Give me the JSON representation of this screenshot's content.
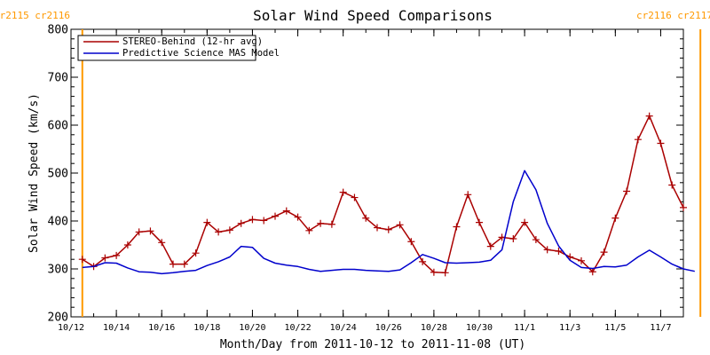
{
  "chart_data": {
    "type": "line",
    "title": "Solar Wind Speed Comparisons",
    "xlabel": "Month/Day from 2011-10-12 to 2011-11-08 (UT)",
    "ylabel": "Solar Wind Speed (km/s)",
    "xlim": [
      "2011-10-12",
      "2011-11-08"
    ],
    "ylim": [
      200,
      800
    ],
    "yticks": [
      200,
      300,
      400,
      500,
      600,
      700,
      800
    ],
    "xticks": [
      {
        "date": "2011-10-12",
        "label": "10/12"
      },
      {
        "date": "2011-10-14",
        "label": "10/14"
      },
      {
        "date": "2011-10-16",
        "label": "10/16"
      },
      {
        "date": "2011-10-18",
        "label": "10/18"
      },
      {
        "date": "2011-10-20",
        "label": "10/20"
      },
      {
        "date": "2011-10-22",
        "label": "10/22"
      },
      {
        "date": "2011-10-24",
        "label": "10/24"
      },
      {
        "date": "2011-10-26",
        "label": "10/26"
      },
      {
        "date": "2011-10-28",
        "label": "10/28"
      },
      {
        "date": "2011-10-30",
        "label": "10/30"
      },
      {
        "date": "2011-11-01",
        "label": "11/1"
      },
      {
        "date": "2011-11-03",
        "label": "11/3"
      },
      {
        "date": "2011-11-05",
        "label": "11/5"
      },
      {
        "date": "2011-11-07",
        "label": "11/7"
      }
    ],
    "legend_position": "top-left",
    "grid": false,
    "carrington_markers": [
      {
        "date": "2011-10-12 12:00",
        "left_label": "cr2115",
        "right_label": "cr2116",
        "label_side": "left",
        "color": "#FF9900"
      },
      {
        "date": "2011-11-08 18:00",
        "left_label": "cr2116",
        "right_label": "cr2117",
        "label_side": "right",
        "color": "#FF9900"
      }
    ],
    "series": [
      {
        "name": "STEREO-Behind (12-hr avg)",
        "color": "#AA0000",
        "marker": "plus",
        "points": [
          [
            "2011-10-12 12:00",
            320
          ],
          [
            "2011-10-13 00:00",
            305
          ],
          [
            "2011-10-13 12:00",
            323
          ],
          [
            "2011-10-14 00:00",
            328
          ],
          [
            "2011-10-14 12:00",
            350
          ],
          [
            "2011-10-15 00:00",
            377
          ],
          [
            "2011-10-15 12:00",
            379
          ],
          [
            "2011-10-16 00:00",
            355
          ],
          [
            "2011-10-16 12:00",
            310
          ],
          [
            "2011-10-17 00:00",
            310
          ],
          [
            "2011-10-17 12:00",
            333
          ],
          [
            "2011-10-18 00:00",
            397
          ],
          [
            "2011-10-18 12:00",
            377
          ],
          [
            "2011-10-19 00:00",
            381
          ],
          [
            "2011-10-19 12:00",
            395
          ],
          [
            "2011-10-20 00:00",
            403
          ],
          [
            "2011-10-20 12:00",
            401
          ],
          [
            "2011-10-21 00:00",
            410
          ],
          [
            "2011-10-21 12:00",
            421
          ],
          [
            "2011-10-22 00:00",
            408
          ],
          [
            "2011-10-22 12:00",
            380
          ],
          [
            "2011-10-23 00:00",
            395
          ],
          [
            "2011-10-23 12:00",
            393
          ],
          [
            "2011-10-24 00:00",
            460
          ],
          [
            "2011-10-24 12:00",
            449
          ],
          [
            "2011-10-25 00:00",
            406
          ],
          [
            "2011-10-25 12:00",
            386
          ],
          [
            "2011-10-26 00:00",
            382
          ],
          [
            "2011-10-26 12:00",
            392
          ],
          [
            "2011-10-27 00:00",
            357
          ],
          [
            "2011-10-27 12:00",
            315
          ],
          [
            "2011-10-28 00:00",
            293
          ],
          [
            "2011-10-28 12:00",
            292
          ],
          [
            "2011-10-29 00:00",
            388
          ],
          [
            "2011-10-29 12:00",
            455
          ],
          [
            "2011-10-30 00:00",
            397
          ],
          [
            "2011-10-30 12:00",
            347
          ],
          [
            "2011-10-31 00:00",
            366
          ],
          [
            "2011-10-31 12:00",
            363
          ],
          [
            "2011-11-01 00:00",
            397
          ],
          [
            "2011-11-01 12:00",
            361
          ],
          [
            "2011-11-02 00:00",
            340
          ],
          [
            "2011-11-02 12:00",
            337
          ],
          [
            "2011-11-03 00:00",
            325
          ],
          [
            "2011-11-03 12:00",
            317
          ],
          [
            "2011-11-04 00:00",
            294
          ],
          [
            "2011-11-04 12:00",
            335
          ],
          [
            "2011-11-05 00:00",
            406
          ],
          [
            "2011-11-05 12:00",
            462
          ],
          [
            "2011-11-06 00:00",
            570
          ],
          [
            "2011-11-06 12:00",
            619
          ],
          [
            "2011-11-07 00:00",
            562
          ],
          [
            "2011-11-07 12:00",
            475
          ],
          [
            "2011-11-08 00:00",
            428
          ]
        ]
      },
      {
        "name": "Predictive Science MAS Model",
        "color": "#0000CC",
        "marker": "none",
        "points": [
          [
            "2011-10-12 12:00",
            303
          ],
          [
            "2011-10-13 00:00",
            305
          ],
          [
            "2011-10-13 12:00",
            313
          ],
          [
            "2011-10-14 00:00",
            312
          ],
          [
            "2011-10-14 12:00",
            302
          ],
          [
            "2011-10-15 00:00",
            294
          ],
          [
            "2011-10-15 12:00",
            293
          ],
          [
            "2011-10-16 00:00",
            290
          ],
          [
            "2011-10-16 12:00",
            292
          ],
          [
            "2011-10-17 00:00",
            295
          ],
          [
            "2011-10-17 12:00",
            297
          ],
          [
            "2011-10-18 00:00",
            307
          ],
          [
            "2011-10-18 12:00",
            315
          ],
          [
            "2011-10-19 00:00",
            325
          ],
          [
            "2011-10-19 12:00",
            347
          ],
          [
            "2011-10-20 00:00",
            345
          ],
          [
            "2011-10-20 12:00",
            322
          ],
          [
            "2011-10-21 00:00",
            312
          ],
          [
            "2011-10-21 12:00",
            308
          ],
          [
            "2011-10-22 00:00",
            305
          ],
          [
            "2011-10-22 12:00",
            299
          ],
          [
            "2011-10-23 00:00",
            295
          ],
          [
            "2011-10-23 12:00",
            297
          ],
          [
            "2011-10-24 00:00",
            299
          ],
          [
            "2011-10-24 12:00",
            299
          ],
          [
            "2011-10-25 00:00",
            297
          ],
          [
            "2011-10-25 12:00",
            296
          ],
          [
            "2011-10-26 00:00",
            295
          ],
          [
            "2011-10-26 12:00",
            298
          ],
          [
            "2011-10-27 00:00",
            313
          ],
          [
            "2011-10-27 12:00",
            330
          ],
          [
            "2011-10-28 00:00",
            322
          ],
          [
            "2011-10-28 12:00",
            313
          ],
          [
            "2011-10-29 00:00",
            312
          ],
          [
            "2011-10-29 12:00",
            313
          ],
          [
            "2011-10-30 00:00",
            314
          ],
          [
            "2011-10-30 12:00",
            318
          ],
          [
            "2011-10-31 00:00",
            340
          ],
          [
            "2011-10-31 12:00",
            440
          ],
          [
            "2011-11-01 00:00",
            505
          ],
          [
            "2011-11-01 12:00",
            465
          ],
          [
            "2011-11-02 00:00",
            395
          ],
          [
            "2011-11-02 12:00",
            348
          ],
          [
            "2011-11-03 00:00",
            318
          ],
          [
            "2011-11-03 12:00",
            303
          ],
          [
            "2011-11-04 00:00",
            301
          ],
          [
            "2011-11-04 12:00",
            305
          ],
          [
            "2011-11-05 00:00",
            304
          ],
          [
            "2011-11-05 12:00",
            308
          ],
          [
            "2011-11-06 00:00",
            325
          ],
          [
            "2011-11-06 12:00",
            339
          ],
          [
            "2011-11-07 00:00",
            325
          ],
          [
            "2011-11-07 12:00",
            310
          ],
          [
            "2011-11-08 00:00",
            300
          ],
          [
            "2011-11-08 12:00",
            295
          ]
        ]
      }
    ]
  }
}
